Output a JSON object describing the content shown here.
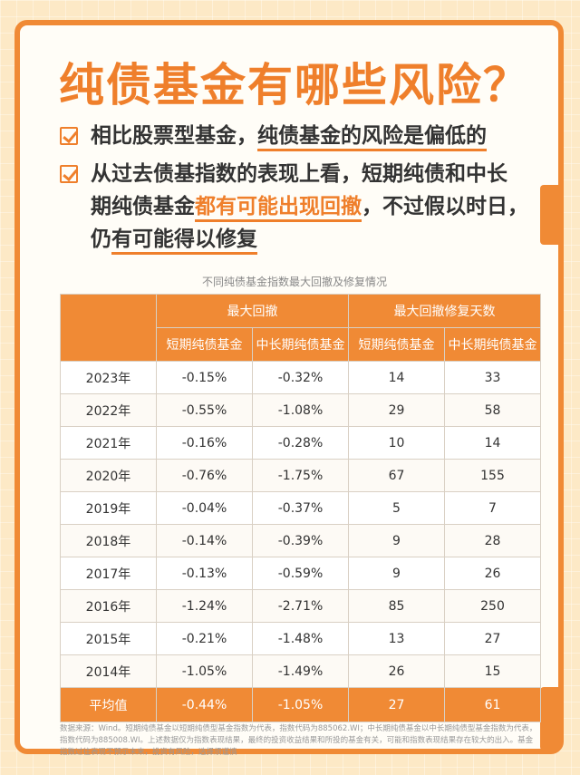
{
  "title": "纯债基金有哪些风险？",
  "bullets": [
    {
      "pre": "相比股票型基金，",
      "hl": "纯债基金的风险是偏低的"
    },
    {
      "line1": "从过去债基指数的表现上看，短期纯债和中长",
      "line2_pre": "期纯债基金",
      "line2_hl": "都有可能出现回撤",
      "line2_post": "，不过假以时日，",
      "line3_pre": "仍",
      "line3_hl": "有可能得以修复"
    }
  ],
  "caption": "不同纯债基金指数最大回撤及修复情况",
  "table": {
    "group_headers": [
      "最大回撤",
      "最大回撤修复天数"
    ],
    "sub_headers": [
      "短期纯债基金",
      "中长期纯债基金",
      "短期纯债基金",
      "中长期纯债基金"
    ],
    "rows": [
      [
        "2023年",
        "-0.15%",
        "-0.32%",
        "14",
        "33"
      ],
      [
        "2022年",
        "-0.55%",
        "-1.08%",
        "29",
        "58"
      ],
      [
        "2021年",
        "-0.16%",
        "-0.28%",
        "10",
        "14"
      ],
      [
        "2020年",
        "-0.76%",
        "-1.75%",
        "67",
        "155"
      ],
      [
        "2019年",
        "-0.04%",
        "-0.37%",
        "5",
        "7"
      ],
      [
        "2018年",
        "-0.14%",
        "-0.39%",
        "9",
        "28"
      ],
      [
        "2017年",
        "-0.13%",
        "-0.59%",
        "9",
        "26"
      ],
      [
        "2016年",
        "-1.24%",
        "-2.71%",
        "85",
        "250"
      ],
      [
        "2015年",
        "-0.21%",
        "-1.48%",
        "13",
        "27"
      ],
      [
        "2014年",
        "-1.05%",
        "-1.49%",
        "26",
        "15"
      ]
    ],
    "average": [
      "平均值",
      "-0.44%",
      "-1.05%",
      "27",
      "61"
    ]
  },
  "footnote": "数据来源：Wind。短期纯债基金以短期纯债型基金指数为代表，指数代码为885062.WI；中长期纯债基金以中长期纯债型基金指数为代表，指数代码为885008.WI。上述数据仅为指数表现结果，最终的投资收益结果和所投的基金有关，可能和指数表现结果存在较大的出入。基金指数过往表现不预示未来，投资有风险，选择须谨慎",
  "colors": {
    "accent": "#f08a35",
    "background": "#fde9c6"
  }
}
